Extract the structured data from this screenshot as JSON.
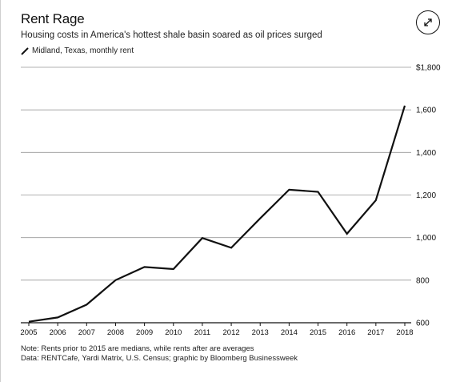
{
  "header": {
    "title": "Rent Rage",
    "subtitle": "Housing costs in America's hottest shale basin soared as oil prices surged",
    "legend_label": "Midland, Texas, monthly rent",
    "expand_icon": "expand-arrows-icon"
  },
  "footer": {
    "note": "Note: Rents prior to 2015 are medians, while rents after are averages",
    "source": "Data: RENTCafe, Yardi Matrix, U.S. Census; graphic by Bloomberg Businessweek"
  },
  "colors": {
    "line": "#111111",
    "grid": "#999999",
    "text": "#111111"
  },
  "chart_data": {
    "type": "line",
    "x": [
      2005,
      2006,
      2007,
      2008,
      2009,
      2010,
      2011,
      2012,
      2013,
      2014,
      2015,
      2016,
      2017,
      2018
    ],
    "series": [
      {
        "name": "Midland, Texas, monthly rent",
        "values": [
          605,
          625,
          685,
          800,
          862,
          852,
          998,
          952,
          1090,
          1225,
          1215,
          1018,
          1175,
          1620
        ]
      }
    ],
    "ylim": [
      600,
      1800
    ],
    "yticks": [
      600,
      800,
      1000,
      1200,
      1400,
      1600,
      1800
    ],
    "ytick_labels": [
      "600",
      "800",
      "1,000",
      "1,200",
      "1,400",
      "1,600",
      "$1,800"
    ],
    "xtick_labels": [
      "2005",
      "2006",
      "2007",
      "2008",
      "2009",
      "2010",
      "2011",
      "2012",
      "2013",
      "2014",
      "2015",
      "2016",
      "2017",
      "2018"
    ],
    "grid": true,
    "y_axis_position": "right"
  }
}
